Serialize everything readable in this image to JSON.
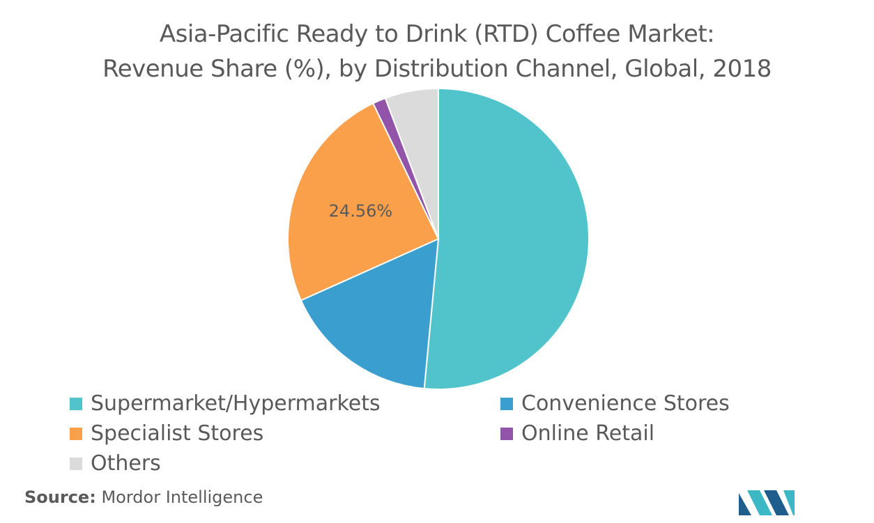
{
  "chart_data": {
    "type": "pie",
    "title_line1": "Asia-Pacific Ready to Drink (RTD) Coffee Market:",
    "title_line2": "Revenue Share (%), by Distribution Channel, Global, 2018",
    "slices": [
      {
        "label": "Supermarket/Hypermarkets",
        "value": 51.5,
        "color": "#50C4CA"
      },
      {
        "label": "Convenience Stores",
        "value": 16.8,
        "color": "#3A9FCF"
      },
      {
        "label": "Specialist Stores",
        "value": 24.56,
        "color": "#FBA04A"
      },
      {
        "label": "Online Retail",
        "value": 1.4,
        "color": "#9254A8"
      },
      {
        "label": "Others",
        "value": 5.74,
        "color": "#DBDBDB"
      }
    ],
    "data_labels": [
      {
        "slice": "Specialist Stores",
        "text": "24.56%"
      }
    ],
    "legend_position": "bottom",
    "start_angle": "top, clockwise"
  },
  "source": {
    "label": "Source:",
    "text": "Mordor Intelligence"
  },
  "logo": {
    "name": "mordor-intelligence-logo",
    "colors": [
      "#1F5E8C",
      "#3CB7C4"
    ]
  }
}
